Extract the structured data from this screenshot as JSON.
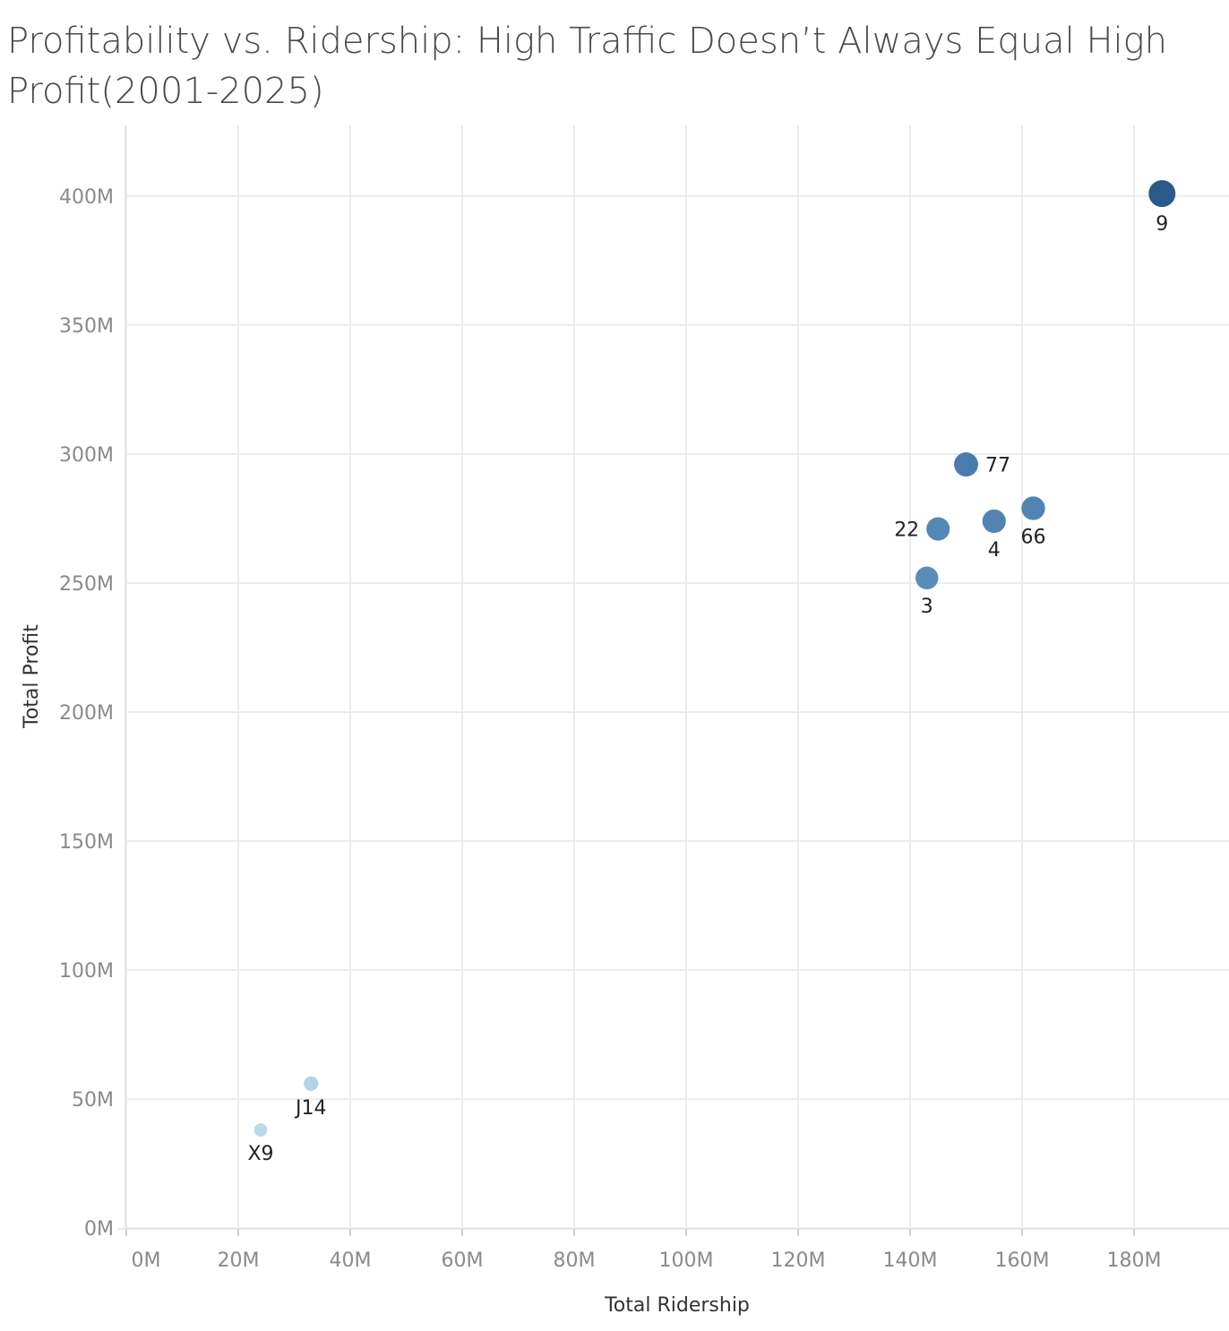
{
  "chart_data": {
    "type": "scatter",
    "title": "Profitability vs. Ridership: High Traffic Doesn’t Always Equal High Profit(2001-2025)",
    "xlabel": "Total Ridership",
    "ylabel": "Total Profit",
    "xlim": [
      0,
      190000000
    ],
    "ylim": [
      0,
      420000000
    ],
    "grid": true,
    "x_ticks": [
      {
        "value": 0,
        "label": "0M"
      },
      {
        "value": 20000000,
        "label": "20M"
      },
      {
        "value": 40000000,
        "label": "40M"
      },
      {
        "value": 60000000,
        "label": "60M"
      },
      {
        "value": 80000000,
        "label": "80M"
      },
      {
        "value": 100000000,
        "label": "100M"
      },
      {
        "value": 120000000,
        "label": "120M"
      },
      {
        "value": 140000000,
        "label": "140M"
      },
      {
        "value": 160000000,
        "label": "160M"
      },
      {
        "value": 180000000,
        "label": "180M"
      }
    ],
    "y_ticks": [
      {
        "value": 0,
        "label": "0M"
      },
      {
        "value": 50000000,
        "label": "50M"
      },
      {
        "value": 100000000,
        "label": "100M"
      },
      {
        "value": 150000000,
        "label": "150M"
      },
      {
        "value": 200000000,
        "label": "200M"
      },
      {
        "value": 250000000,
        "label": "250M"
      },
      {
        "value": 300000000,
        "label": "300M"
      },
      {
        "value": 350000000,
        "label": "350M"
      },
      {
        "value": 400000000,
        "label": "400M"
      }
    ],
    "points": [
      {
        "label": "9",
        "x": 185000000,
        "y": 401000000,
        "label_pos": "below",
        "color": "#2b5a89"
      },
      {
        "label": "77",
        "x": 150000000,
        "y": 296000000,
        "label_pos": "right",
        "color": "#4a7cab"
      },
      {
        "label": "66",
        "x": 162000000,
        "y": 279000000,
        "label_pos": "below",
        "color": "#5283b1"
      },
      {
        "label": "4",
        "x": 155000000,
        "y": 274000000,
        "label_pos": "below",
        "color": "#5283b1"
      },
      {
        "label": "22",
        "x": 145000000,
        "y": 271000000,
        "label_pos": "left",
        "color": "#5588b5"
      },
      {
        "label": "3",
        "x": 143000000,
        "y": 252000000,
        "label_pos": "below",
        "color": "#5a8cb8"
      },
      {
        "label": "J14",
        "x": 33000000,
        "y": 56000000,
        "label_pos": "below",
        "color": "#b3d3e8"
      },
      {
        "label": "X9",
        "x": 24000000,
        "y": 38000000,
        "label_pos": "below",
        "color": "#bcd9ec"
      }
    ]
  }
}
